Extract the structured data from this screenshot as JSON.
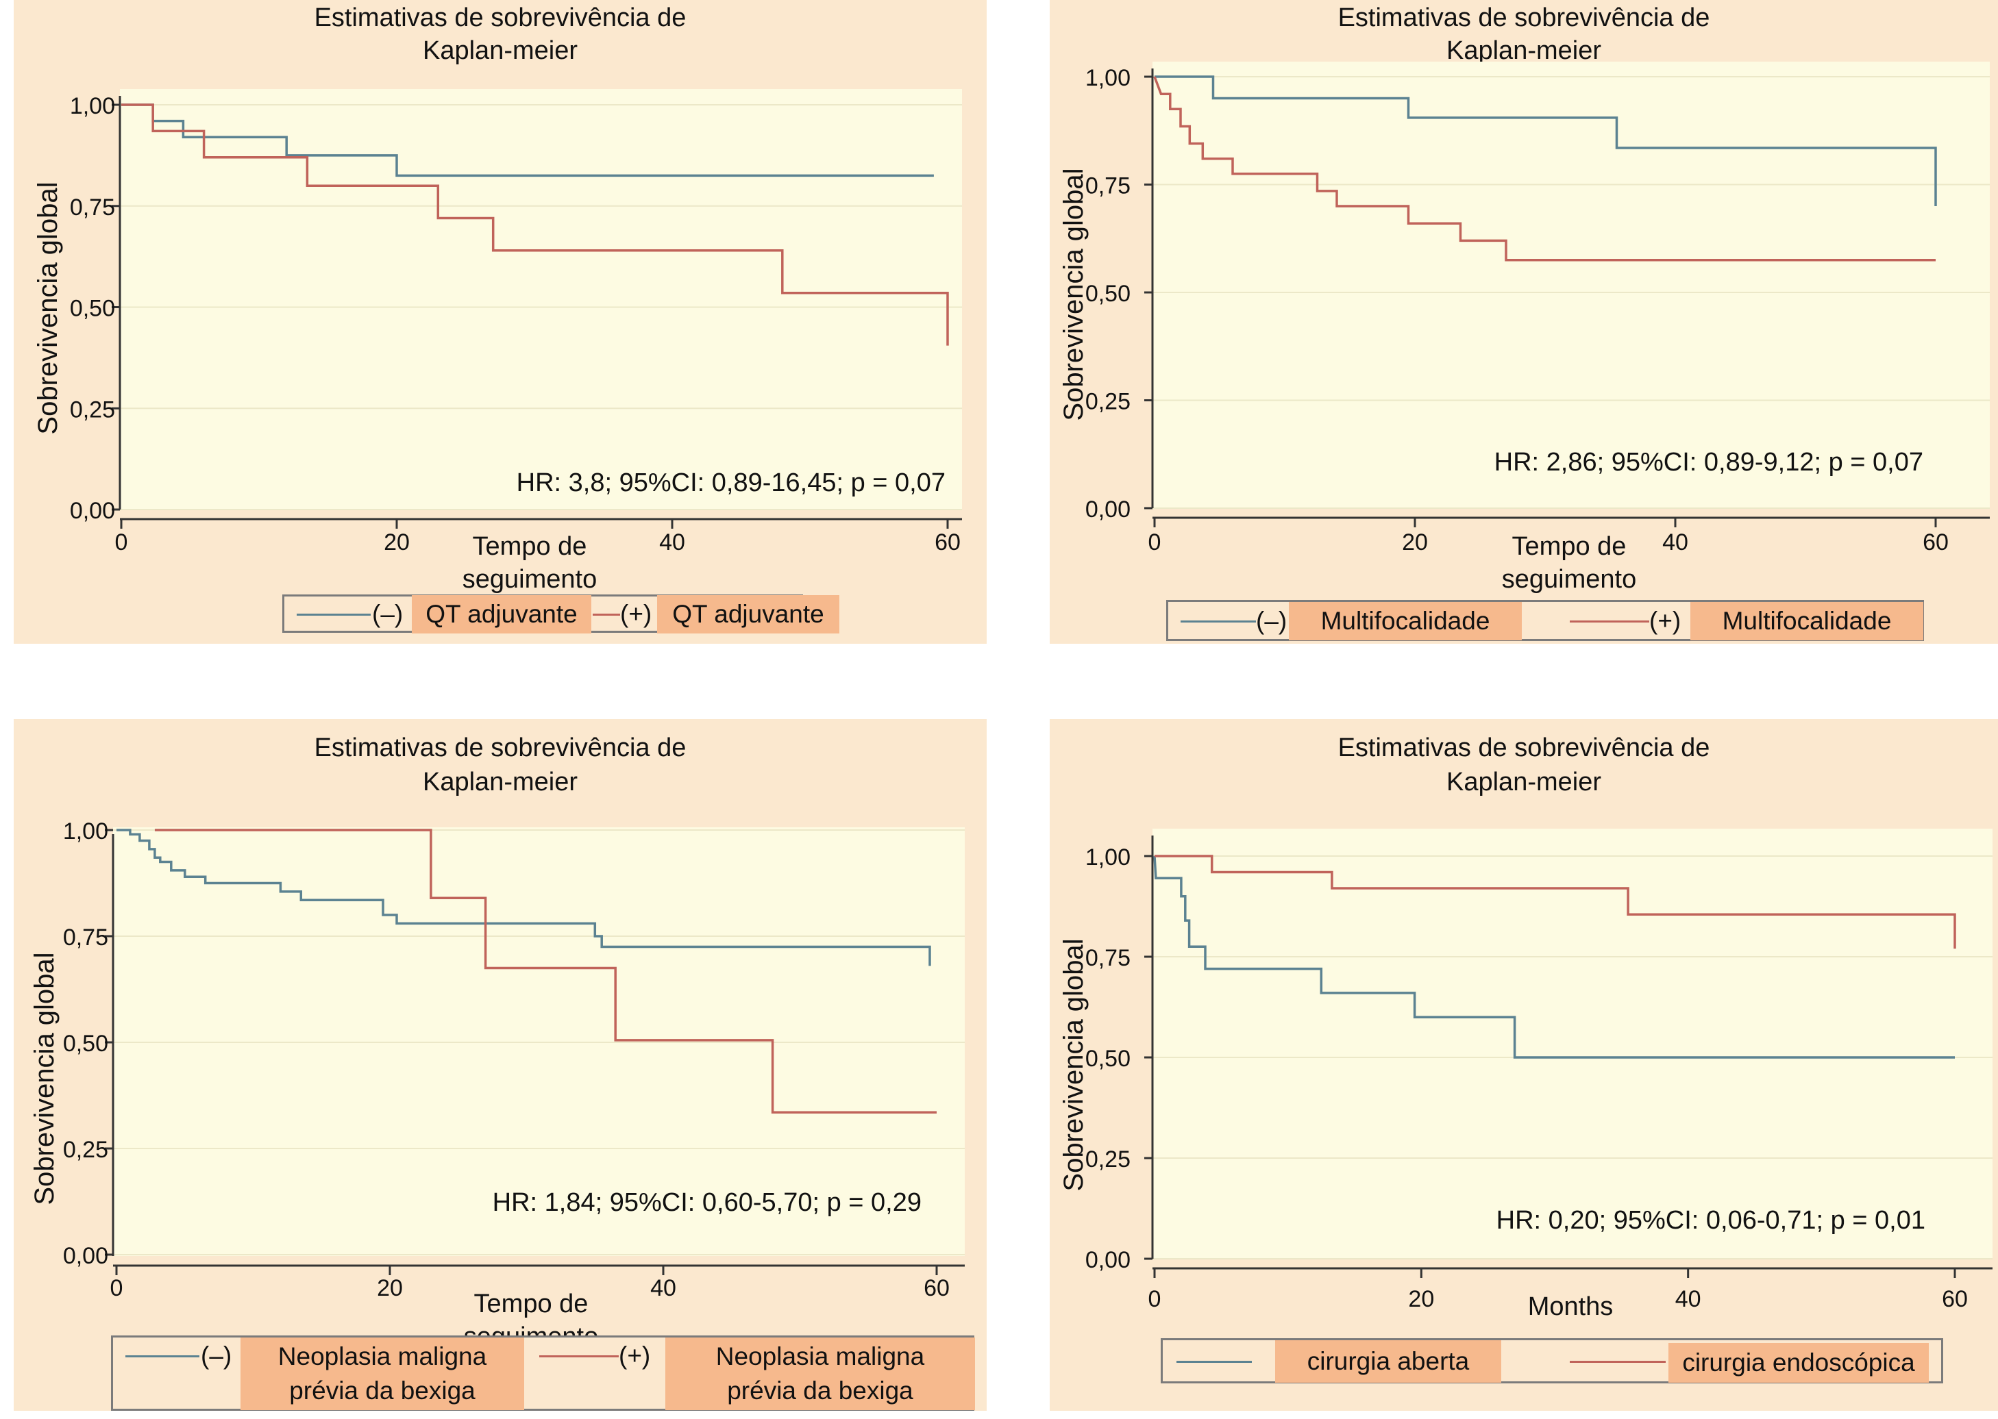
{
  "colors": {
    "neg_series": "#5b8291",
    "pos_series": "#c0635a"
  },
  "panels": [
    {
      "title_l1": "Estimativas de sobrevivência de",
      "title_l2": "Kaplan-meier",
      "ylabel": "Sobrevivencia global",
      "xlabel_l1": "Tempo de",
      "xlabel_l2": "seguimento",
      "annotation": "HR: 3,8; 95%CI: 0,89-16,45; p = 0,07",
      "legend": {
        "neg_sign": "(–)",
        "neg_label": "QT adjuvante",
        "pos_sign": "(+)",
        "pos_label": "QT adjuvante"
      }
    },
    {
      "title_l1": "Estimativas de sobrevivência de",
      "title_l2": "Kaplan-meier",
      "ylabel": "Sobrevivencia global",
      "xlabel_l1": "Tempo de",
      "xlabel_l2": "seguimento",
      "annotation": "HR: 2,86; 95%CI: 0,89-9,12; p = 0,07",
      "legend": {
        "neg_sign": "(–)",
        "neg_label": "Multifocalidade",
        "pos_sign": "(+)",
        "pos_label": "Multifocalidade"
      }
    },
    {
      "title_l1": "Estimativas de sobrevivência de",
      "title_l2": "Kaplan-meier",
      "ylabel": "Sobrevivencia global",
      "xlabel_l1": "Tempo de",
      "xlabel_l2": "seguimento",
      "annotation": "HR: 1,84; 95%CI: 0,60-5,70; p = 0,29",
      "legend": {
        "neg_sign": "(–)",
        "neg_label_l1": "Neoplasia maligna",
        "neg_label_l2": "prévia da bexiga",
        "pos_sign": "(+)",
        "pos_label_l1": "Neoplasia maligna",
        "pos_label_l2": "prévia da bexiga"
      }
    },
    {
      "title_l1": "Estimativas de sobrevivência de",
      "title_l2": "Kaplan-meier",
      "ylabel": "Sobrevivencia global",
      "xlabel": "Months",
      "annotation": "HR: 0,20; 95%CI: 0,06-0,71; p = 0,01",
      "legend": {
        "neg_label": "cirurgia aberta",
        "pos_label": "cirurgia endoscópica"
      }
    }
  ],
  "chart_data": [
    {
      "type": "line",
      "step": true,
      "title": "Estimativas de sobrevivência de Kaplan-meier",
      "xlabel": "Tempo de seguimento",
      "ylabel": "Sobrevivencia global",
      "xlim": [
        0,
        60
      ],
      "ylim": [
        0,
        1
      ],
      "xticks": [
        "0",
        "20",
        "40",
        "60"
      ],
      "yticks": [
        "0,00",
        "0,25",
        "0,50",
        "0,75",
        "1,00"
      ],
      "series": [
        {
          "name": "(–) QT adjuvante",
          "color": "neg",
          "points": [
            [
              0,
              1.0
            ],
            [
              2.3,
              1.0
            ],
            [
              2.3,
              0.96
            ],
            [
              4.5,
              0.96
            ],
            [
              4.5,
              0.92
            ],
            [
              12,
              0.92
            ],
            [
              12,
              0.875
            ],
            [
              20,
              0.875
            ],
            [
              20,
              0.825
            ],
            [
              59,
              0.825
            ]
          ]
        },
        {
          "name": "(+) QT adjuvante",
          "color": "pos",
          "points": [
            [
              0,
              1.0
            ],
            [
              2.3,
              1.0
            ],
            [
              2.3,
              0.935
            ],
            [
              6,
              0.935
            ],
            [
              6,
              0.87
            ],
            [
              13.5,
              0.87
            ],
            [
              13.5,
              0.8
            ],
            [
              23,
              0.8
            ],
            [
              23,
              0.72
            ],
            [
              27,
              0.72
            ],
            [
              27,
              0.64
            ],
            [
              48,
              0.64
            ],
            [
              48,
              0.535
            ],
            [
              60,
              0.535
            ],
            [
              60,
              0.405
            ]
          ]
        }
      ]
    },
    {
      "type": "line",
      "step": true,
      "title": "Estimativas de sobrevivência de Kaplan-meier",
      "xlabel": "Tempo de seguimento",
      "ylabel": "Sobrevivencia global",
      "xlim": [
        0,
        60
      ],
      "ylim": [
        0,
        1
      ],
      "xticks": [
        "0",
        "20",
        "40",
        "60"
      ],
      "yticks": [
        "0,00",
        "0,25",
        "0,50",
        "0,75",
        "1,00"
      ],
      "series": [
        {
          "name": "(–) Multifocalidade",
          "color": "neg",
          "points": [
            [
              0,
              1.0
            ],
            [
              4.5,
              1.0
            ],
            [
              4.5,
              0.95
            ],
            [
              19.5,
              0.95
            ],
            [
              19.5,
              0.905
            ],
            [
              35.5,
              0.905
            ],
            [
              35.5,
              0.835
            ],
            [
              60,
              0.835
            ],
            [
              60,
              0.7
            ]
          ]
        },
        {
          "name": "(+) Multifocalidade",
          "color": "pos",
          "points": [
            [
              0,
              1.0
            ],
            [
              0.5,
              0.96
            ],
            [
              1.2,
              0.96
            ],
            [
              1.2,
              0.925
            ],
            [
              2,
              0.925
            ],
            [
              2,
              0.885
            ],
            [
              2.7,
              0.885
            ],
            [
              2.7,
              0.845
            ],
            [
              3.7,
              0.845
            ],
            [
              3.7,
              0.81
            ],
            [
              6,
              0.81
            ],
            [
              6,
              0.775
            ],
            [
              12.5,
              0.775
            ],
            [
              12.5,
              0.735
            ],
            [
              14,
              0.735
            ],
            [
              14,
              0.7
            ],
            [
              19.5,
              0.7
            ],
            [
              19.5,
              0.66
            ],
            [
              23.5,
              0.66
            ],
            [
              23.5,
              0.62
            ],
            [
              27,
              0.62
            ],
            [
              27,
              0.575
            ],
            [
              60,
              0.575
            ]
          ]
        }
      ]
    },
    {
      "type": "line",
      "step": true,
      "title": "Estimativas de sobrevivência de Kaplan-meier",
      "xlabel": "Tempo de seguimento",
      "ylabel": "Sobrevivencia global",
      "xlim": [
        0,
        60
      ],
      "ylim": [
        0,
        1
      ],
      "xticks": [
        "0",
        "20",
        "40",
        "60"
      ],
      "yticks": [
        "0,00",
        "0,25",
        "0,50",
        "0,75",
        "1,00"
      ],
      "series": [
        {
          "name": "(–) Neoplasia maligna prévia da bexiga",
          "color": "neg",
          "points": [
            [
              0,
              1.0
            ],
            [
              1,
              1.0
            ],
            [
              1,
              0.99
            ],
            [
              1.7,
              0.99
            ],
            [
              1.7,
              0.975
            ],
            [
              2.4,
              0.975
            ],
            [
              2.4,
              0.955
            ],
            [
              2.8,
              0.955
            ],
            [
              2.8,
              0.935
            ],
            [
              3.2,
              0.935
            ],
            [
              3.2,
              0.925
            ],
            [
              4,
              0.925
            ],
            [
              4,
              0.905
            ],
            [
              5,
              0.905
            ],
            [
              5,
              0.89
            ],
            [
              6.5,
              0.89
            ],
            [
              6.5,
              0.875
            ],
            [
              12,
              0.875
            ],
            [
              12,
              0.855
            ],
            [
              13.5,
              0.855
            ],
            [
              13.5,
              0.835
            ],
            [
              19.5,
              0.835
            ],
            [
              19.5,
              0.8
            ],
            [
              20.5,
              0.8
            ],
            [
              20.5,
              0.78
            ],
            [
              35,
              0.78
            ],
            [
              35,
              0.75
            ],
            [
              35.5,
              0.75
            ],
            [
              35.5,
              0.725
            ],
            [
              59.5,
              0.725
            ],
            [
              59.5,
              0.68
            ]
          ]
        },
        {
          "name": "(+) Neoplasia maligna prévia da bexiga",
          "color": "pos",
          "points": [
            [
              2.8,
              1.0
            ],
            [
              23,
              1.0
            ],
            [
              23,
              0.84
            ],
            [
              27,
              0.84
            ],
            [
              27,
              0.675
            ],
            [
              36.5,
              0.675
            ],
            [
              36.5,
              0.505
            ],
            [
              48,
              0.505
            ],
            [
              48,
              0.335
            ],
            [
              60,
              0.335
            ]
          ]
        }
      ]
    },
    {
      "type": "line",
      "step": true,
      "title": "Estimativas de sobrevivência de Kaplan-meier",
      "xlabel": "Months",
      "ylabel": "Sobrevivencia global",
      "xlim": [
        0,
        60
      ],
      "ylim": [
        0,
        1
      ],
      "xticks": [
        "0",
        "20",
        "40",
        "60"
      ],
      "yticks": [
        "0,00",
        "0,25",
        "0,50",
        "0,75",
        "1,00"
      ],
      "series": [
        {
          "name": "cirurgia aberta",
          "color": "neg",
          "points": [
            [
              0,
              1.0
            ],
            [
              0.1,
              0.945
            ],
            [
              2,
              0.945
            ],
            [
              2,
              0.9
            ],
            [
              2.3,
              0.9
            ],
            [
              2.3,
              0.84
            ],
            [
              2.6,
              0.84
            ],
            [
              2.6,
              0.775
            ],
            [
              3.8,
              0.775
            ],
            [
              3.8,
              0.72
            ],
            [
              12.5,
              0.72
            ],
            [
              12.5,
              0.66
            ],
            [
              19.5,
              0.66
            ],
            [
              19.5,
              0.6
            ],
            [
              27,
              0.6
            ],
            [
              27,
              0.5
            ],
            [
              60,
              0.5
            ]
          ]
        },
        {
          "name": "cirurgia endoscópica",
          "color": "pos",
          "points": [
            [
              0,
              1.0
            ],
            [
              4.3,
              1.0
            ],
            [
              4.3,
              0.96
            ],
            [
              13.3,
              0.96
            ],
            [
              13.3,
              0.92
            ],
            [
              35.5,
              0.92
            ],
            [
              35.5,
              0.855
            ],
            [
              60,
              0.855
            ],
            [
              60,
              0.77
            ]
          ]
        }
      ]
    }
  ]
}
